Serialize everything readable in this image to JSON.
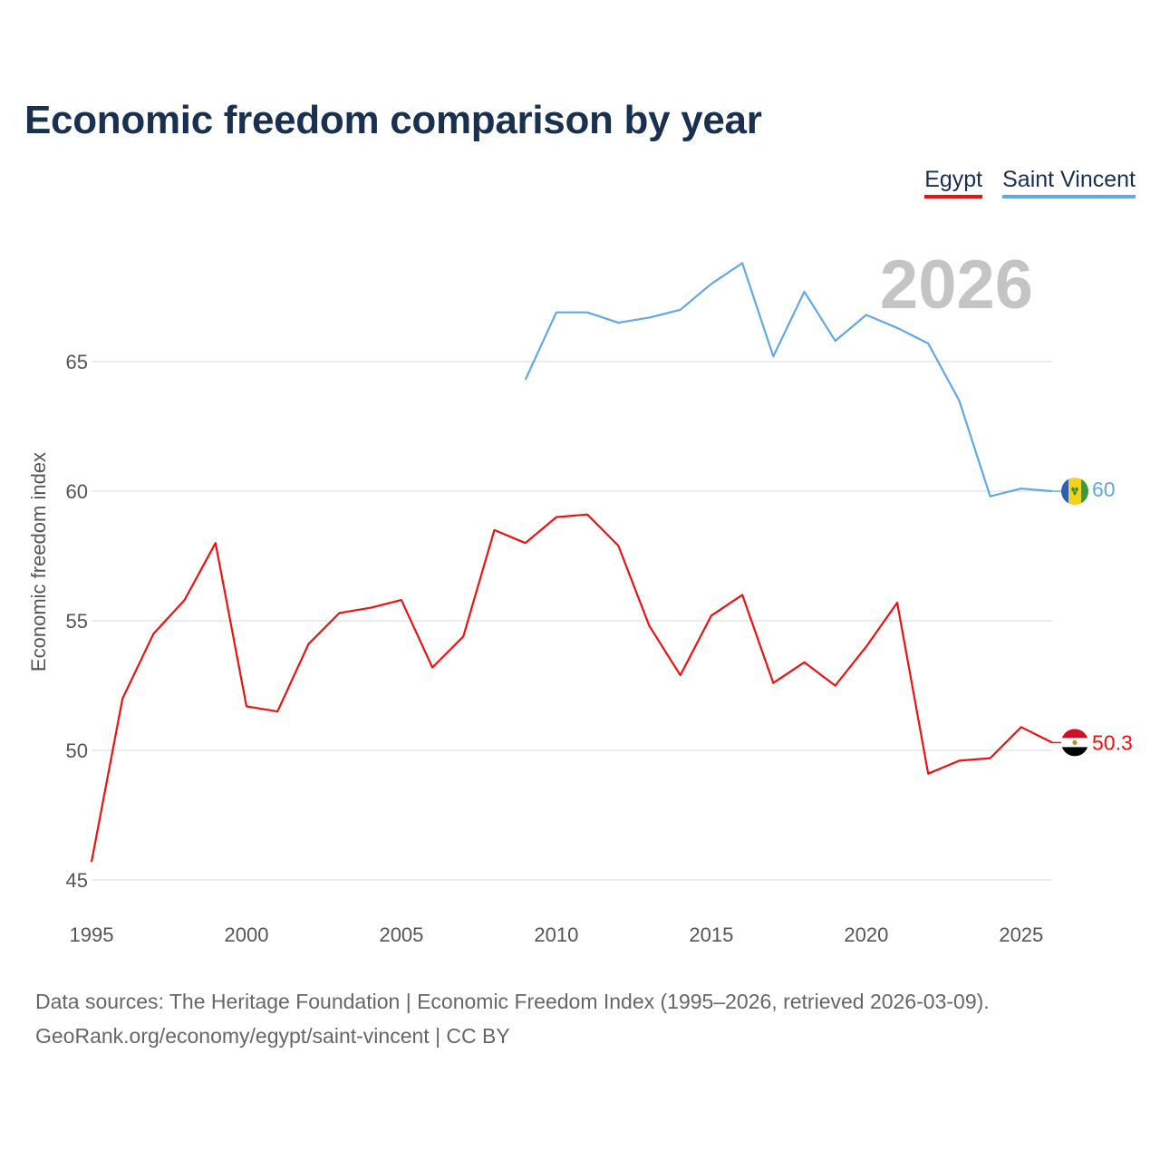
{
  "chart_data": {
    "type": "line",
    "title": "Economic freedom comparison by year",
    "ylabel": "Economic freedom index",
    "xlabel": "",
    "xlim": [
      1995,
      2026
    ],
    "ylim": [
      45,
      70
    ],
    "y_ticks": [
      "45",
      "50",
      "55",
      "60",
      "65"
    ],
    "x_ticks": [
      "1995",
      "2000",
      "2005",
      "2010",
      "2015",
      "2020",
      "2025"
    ],
    "highlight_year": "2026",
    "series": [
      {
        "name": "Egypt",
        "color": "#ee1111",
        "end_label": "50.3",
        "flag": "egypt-flag-icon",
        "x": [
          1995,
          1996,
          1997,
          1998,
          1999,
          2000,
          2001,
          2002,
          2003,
          2004,
          2005,
          2006,
          2007,
          2008,
          2009,
          2010,
          2011,
          2012,
          2013,
          2014,
          2015,
          2016,
          2017,
          2018,
          2019,
          2020,
          2021,
          2022,
          2023,
          2024,
          2025,
          2026
        ],
        "values": [
          45.7,
          52.0,
          54.5,
          55.8,
          58.0,
          51.7,
          51.5,
          54.1,
          55.3,
          55.5,
          55.8,
          53.2,
          54.4,
          58.5,
          58.0,
          59.0,
          59.1,
          57.9,
          54.8,
          52.9,
          55.2,
          56.0,
          52.6,
          53.4,
          52.5,
          54.0,
          55.7,
          49.1,
          49.6,
          49.7,
          50.9,
          50.3
        ]
      },
      {
        "name": "Saint Vincent",
        "color": "#62a8e4",
        "end_label": "60",
        "flag": "saint-vincent-flag-icon",
        "x": [
          2009,
          2010,
          2011,
          2012,
          2013,
          2014,
          2015,
          2016,
          2017,
          2018,
          2019,
          2020,
          2021,
          2022,
          2023,
          2024,
          2025,
          2026
        ],
        "values": [
          64.3,
          66.9,
          66.9,
          66.5,
          66.7,
          67.0,
          68.0,
          68.8,
          65.2,
          67.7,
          65.8,
          66.8,
          66.3,
          65.7,
          63.5,
          59.8,
          60.1,
          60.0
        ]
      }
    ]
  },
  "footer": {
    "line1": "Data sources: The Heritage Foundation | Economic Freedom Index (1995–2026, retrieved 2026-03-09).",
    "line2": "GeoRank.org/economy/egypt/saint-vincent | CC BY"
  }
}
